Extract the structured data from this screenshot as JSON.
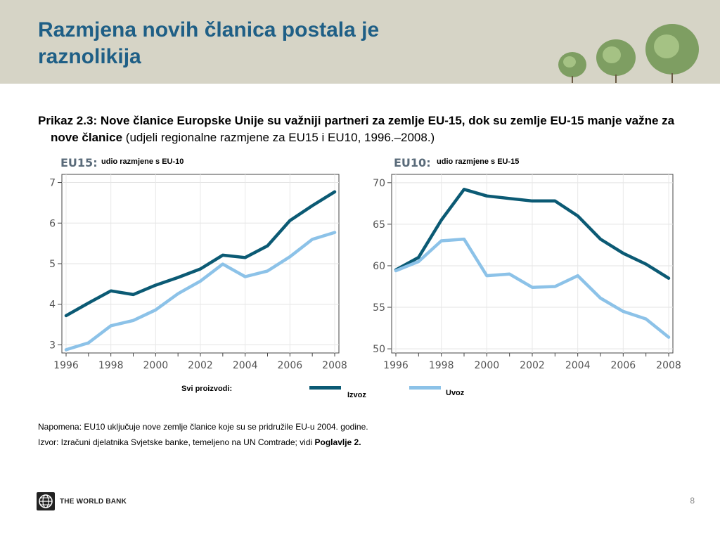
{
  "slide": {
    "title": "Razmjena novih članica postala je raznolikija",
    "caption_bold": "Prikaz 2.3: Nove članice Europske Unije su važniji partneri za zemlje EU-15, dok su zemlje EU-15 manje važne za nove članice",
    "caption_rest": " (udjeli regionalne razmjene za EU15 i EU10, 1996.–2008.)",
    "legend": {
      "label": "Svi proizvodi:",
      "export": "Izvoz",
      "import": "Uvoz"
    },
    "note": "Napomena: EU10 uključuje nove zemlje članice koje su se pridružile EU-u 2004. godine.",
    "source_text": "Izvor: Izračuni djelatnika Svjetske banke, temeljeno na UN Comtrade; vidi ",
    "source_bold": "Poglavlje 2.",
    "footer": "THE WORLD BANK",
    "page_number": "8"
  },
  "colors": {
    "export": "#0b5a74",
    "import": "#8cc2e8",
    "axis": "#444444",
    "title": "#1f5f86"
  },
  "chart_data": [
    {
      "type": "line",
      "title": "EU15:",
      "subtitle": "udio razmjene s EU-10",
      "x": [
        1996,
        1997,
        1998,
        1999,
        2000,
        2001,
        2002,
        2003,
        2004,
        2005,
        2006,
        2007,
        2008
      ],
      "xticks": [
        "1996",
        "1998",
        "2000",
        "2002",
        "2004",
        "2006",
        "2008"
      ],
      "yticks": [
        "3",
        "4",
        "5",
        "6",
        "7"
      ],
      "ylim": [
        2.8,
        7.2
      ],
      "series": [
        {
          "name": "Izvoz",
          "values": [
            3.72,
            4.03,
            4.33,
            4.24,
            4.47,
            4.66,
            4.87,
            5.21,
            5.15,
            5.44,
            6.06,
            6.43,
            6.77
          ]
        },
        {
          "name": "Uvoz",
          "values": [
            2.88,
            3.05,
            3.47,
            3.6,
            3.86,
            4.26,
            4.57,
            4.99,
            4.68,
            4.82,
            5.17,
            5.6,
            5.77
          ]
        }
      ]
    },
    {
      "type": "line",
      "title": "EU10:",
      "subtitle": "udio razmjene s EU-15",
      "x": [
        1996,
        1997,
        1998,
        1999,
        2000,
        2001,
        2002,
        2003,
        2004,
        2005,
        2006,
        2007,
        2008
      ],
      "xticks": [
        "1996",
        "1998",
        "2000",
        "2002",
        "2004",
        "2006",
        "2008"
      ],
      "yticks": [
        "50",
        "55",
        "60",
        "65",
        "70"
      ],
      "ylim": [
        49.5,
        71
      ],
      "series": [
        {
          "name": "Izvoz",
          "values": [
            59.5,
            61.0,
            65.5,
            69.2,
            68.4,
            68.1,
            67.8,
            67.8,
            66.0,
            63.2,
            61.5,
            60.2,
            58.5
          ]
        },
        {
          "name": "Uvoz",
          "values": [
            59.4,
            60.5,
            63.0,
            63.2,
            58.8,
            59.0,
            57.4,
            57.5,
            58.8,
            56.1,
            54.5,
            53.6,
            51.4
          ]
        }
      ]
    }
  ]
}
